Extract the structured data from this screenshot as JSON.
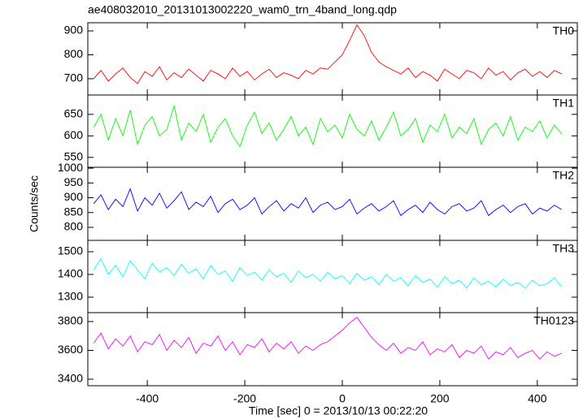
{
  "chart_data": [
    {
      "type": "line",
      "title": "ae408032010_20131013002220_wam0_trn_4band_long.qdp",
      "x": [
        -510,
        -495,
        -480,
        -465,
        -450,
        -435,
        -420,
        -405,
        -390,
        -375,
        -360,
        -345,
        -330,
        -315,
        -300,
        -285,
        -270,
        -255,
        -240,
        -225,
        -210,
        -195,
        -180,
        -165,
        -150,
        -135,
        -120,
        -105,
        -90,
        -75,
        -60,
        -45,
        -30,
        -15,
        0,
        15,
        30,
        45,
        60,
        75,
        90,
        105,
        120,
        135,
        150,
        165,
        180,
        195,
        210,
        225,
        240,
        255,
        270,
        285,
        300,
        315,
        330,
        345,
        360,
        375,
        390,
        405,
        420,
        435,
        450
      ],
      "series": [
        {
          "name": "TH0",
          "color": "#ff0000",
          "values": [
            700,
            735,
            690,
            720,
            745,
            705,
            680,
            730,
            710,
            750,
            695,
            725,
            705,
            740,
            715,
            690,
            735,
            720,
            700,
            745,
            710,
            730,
            695,
            720,
            740,
            705,
            725,
            715,
            700,
            735,
            720,
            745,
            740,
            770,
            800,
            860,
            925,
            880,
            810,
            770,
            750,
            735,
            720,
            745,
            705,
            730,
            715,
            690,
            740,
            720,
            700,
            735,
            725,
            700,
            745,
            715,
            730,
            695,
            725,
            740,
            710,
            730,
            705,
            735,
            720
          ]
        }
      ],
      "xlim": [
        -522,
        482
      ],
      "ylim": [
        632,
        934
      ],
      "yticks": [
        700,
        800,
        900
      ]
    },
    {
      "type": "line",
      "x": [
        -510,
        -495,
        -480,
        -465,
        -450,
        -435,
        -420,
        -405,
        -390,
        -375,
        -360,
        -345,
        -330,
        -315,
        -300,
        -285,
        -270,
        -255,
        -240,
        -225,
        -210,
        -195,
        -180,
        -165,
        -150,
        -135,
        -120,
        -105,
        -90,
        -75,
        -60,
        -45,
        -30,
        -15,
        0,
        15,
        30,
        45,
        60,
        75,
        90,
        105,
        120,
        135,
        150,
        165,
        180,
        195,
        210,
        225,
        240,
        255,
        270,
        285,
        300,
        315,
        330,
        345,
        360,
        375,
        390,
        405,
        420,
        435,
        450
      ],
      "series": [
        {
          "name": "TH1",
          "color": "#00ff00",
          "values": [
            620,
            650,
            590,
            640,
            600,
            660,
            580,
            625,
            645,
            600,
            615,
            670,
            590,
            630,
            610,
            650,
            585,
            620,
            640,
            600,
            575,
            625,
            655,
            605,
            630,
            590,
            615,
            645,
            600,
            620,
            580,
            640,
            610,
            625,
            595,
            650,
            615,
            600,
            635,
            590,
            620,
            655,
            600,
            615,
            640,
            585,
            625,
            610,
            650,
            595,
            620,
            605,
            640,
            580,
            615,
            630,
            600,
            645,
            590,
            620,
            610,
            635,
            595,
            625,
            605
          ]
        }
      ],
      "xlim": [
        -522,
        482
      ],
      "ylim": [
        527,
        695
      ],
      "yticks": [
        550,
        600,
        650
      ]
    },
    {
      "type": "line",
      "ylabel": "Counts/sec",
      "x": [
        -510,
        -495,
        -480,
        -465,
        -450,
        -435,
        -420,
        -405,
        -390,
        -375,
        -360,
        -345,
        -330,
        -315,
        -300,
        -285,
        -270,
        -255,
        -240,
        -225,
        -210,
        -195,
        -180,
        -165,
        -150,
        -135,
        -120,
        -105,
        -90,
        -75,
        -60,
        -45,
        -30,
        -15,
        0,
        15,
        30,
        45,
        60,
        75,
        90,
        105,
        120,
        135,
        150,
        165,
        180,
        195,
        210,
        225,
        240,
        255,
        270,
        285,
        300,
        315,
        330,
        345,
        360,
        375,
        390,
        405,
        420,
        435,
        450
      ],
      "series": [
        {
          "name": "TH2",
          "color": "#0000ff",
          "values": [
            880,
            910,
            860,
            895,
            870,
            930,
            855,
            900,
            875,
            915,
            865,
            890,
            920,
            860,
            885,
            870,
            905,
            850,
            880,
            895,
            860,
            875,
            900,
            845,
            870,
            890,
            855,
            880,
            865,
            900,
            850,
            875,
            885,
            860,
            870,
            895,
            845,
            865,
            880,
            855,
            870,
            890,
            840,
            860,
            875,
            850,
            885,
            860,
            845,
            870,
            880,
            855,
            865,
            890,
            840,
            860,
            875,
            850,
            870,
            880,
            845,
            865,
            855,
            875,
            860
          ]
        }
      ],
      "xlim": [
        -522,
        482
      ],
      "ylim": [
        756,
        1003
      ],
      "yticks": [
        800,
        850,
        900,
        950,
        1000
      ]
    },
    {
      "type": "line",
      "x": [
        -510,
        -495,
        -480,
        -465,
        -450,
        -435,
        -420,
        -405,
        -390,
        -375,
        -360,
        -345,
        -330,
        -315,
        -300,
        -285,
        -270,
        -255,
        -240,
        -225,
        -210,
        -195,
        -180,
        -165,
        -150,
        -135,
        -120,
        -105,
        -90,
        -75,
        -60,
        -45,
        -30,
        -15,
        0,
        15,
        30,
        45,
        60,
        75,
        90,
        105,
        120,
        135,
        150,
        165,
        180,
        195,
        210,
        225,
        240,
        255,
        270,
        285,
        300,
        315,
        330,
        345,
        360,
        375,
        390,
        405,
        420,
        435,
        450
      ],
      "series": [
        {
          "name": "TH3",
          "color": "#00ffff",
          "values": [
            1420,
            1470,
            1400,
            1440,
            1390,
            1460,
            1420,
            1380,
            1450,
            1410,
            1430,
            1395,
            1445,
            1405,
            1425,
            1380,
            1440,
            1400,
            1415,
            1370,
            1430,
            1395,
            1410,
            1375,
            1420,
            1390,
            1405,
            1365,
            1415,
            1385,
            1400,
            1370,
            1410,
            1380,
            1395,
            1360,
            1405,
            1375,
            1390,
            1355,
            1400,
            1370,
            1385,
            1350,
            1395,
            1365,
            1380,
            1345,
            1390,
            1360,
            1375,
            1340,
            1385,
            1355,
            1370,
            1345,
            1380,
            1350,
            1365,
            1340,
            1375,
            1350,
            1360,
            1385,
            1345
          ]
        }
      ],
      "xlim": [
        -522,
        482
      ],
      "ylim": [
        1232,
        1550
      ],
      "yticks": [
        1300,
        1400,
        1500
      ]
    },
    {
      "type": "line",
      "xlabel": "Time [sec] 0 = 2013/10/13 00:22:20",
      "x": [
        -510,
        -495,
        -480,
        -465,
        -450,
        -435,
        -420,
        -405,
        -390,
        -375,
        -360,
        -345,
        -330,
        -315,
        -300,
        -285,
        -270,
        -255,
        -240,
        -225,
        -210,
        -195,
        -180,
        -165,
        -150,
        -135,
        -120,
        -105,
        -90,
        -75,
        -60,
        -45,
        -30,
        -15,
        0,
        15,
        30,
        45,
        60,
        75,
        90,
        105,
        120,
        135,
        150,
        165,
        180,
        195,
        210,
        225,
        240,
        255,
        270,
        285,
        300,
        315,
        330,
        345,
        360,
        375,
        390,
        405,
        420,
        435,
        450
      ],
      "series": [
        {
          "name": "TH0123",
          "color": "#ff00ff",
          "values": [
            3650,
            3720,
            3610,
            3680,
            3630,
            3700,
            3590,
            3660,
            3640,
            3710,
            3600,
            3670,
            3620,
            3690,
            3580,
            3650,
            3630,
            3700,
            3600,
            3660,
            3570,
            3640,
            3620,
            3680,
            3590,
            3650,
            3610,
            3660,
            3580,
            3630,
            3600,
            3640,
            3660,
            3700,
            3740,
            3790,
            3830,
            3760,
            3690,
            3640,
            3600,
            3650,
            3580,
            3620,
            3600,
            3660,
            3570,
            3610,
            3590,
            3640,
            3550,
            3600,
            3580,
            3630,
            3540,
            3590,
            3570,
            3620,
            3550,
            3580,
            3600,
            3540,
            3590,
            3560,
            3580
          ]
        }
      ],
      "xlim": [
        -522,
        482
      ],
      "ylim": [
        3355,
        3862
      ],
      "yticks": [
        3400,
        3600,
        3800
      ],
      "xticks": [
        -400,
        -200,
        0,
        200,
        400
      ]
    }
  ]
}
